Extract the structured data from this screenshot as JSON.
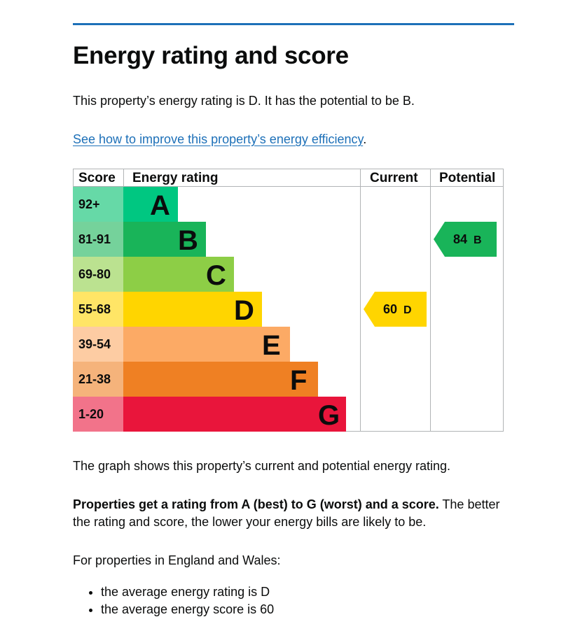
{
  "heading": "Energy rating and score",
  "intro": "This property’s energy rating is D. It has the potential to be B.",
  "improve_link": "See how to improve this property’s energy efficiency",
  "improve_suffix": ".",
  "chart_data": {
    "type": "table",
    "headers": {
      "score": "Score",
      "rating": "Energy rating",
      "current": "Current",
      "potential": "Potential"
    },
    "bands": [
      {
        "letter": "A",
        "range": "92+",
        "bar_color": "#00c781",
        "score_color": "#66d9a7"
      },
      {
        "letter": "B",
        "range": "81-91",
        "bar_color": "#19b459",
        "score_color": "#75d29b"
      },
      {
        "letter": "C",
        "range": "69-80",
        "bar_color": "#8dce46",
        "score_color": "#bbe290"
      },
      {
        "letter": "D",
        "range": "55-68",
        "bar_color": "#ffd500",
        "score_color": "#ffe566"
      },
      {
        "letter": "E",
        "range": "39-54",
        "bar_color": "#fcaa65",
        "score_color": "#fdcca3"
      },
      {
        "letter": "F",
        "range": "21-38",
        "bar_color": "#ef8023",
        "score_color": "#f5b37b"
      },
      {
        "letter": "G",
        "range": "1-20",
        "bar_color": "#e9153b",
        "score_color": "#f2738a"
      }
    ],
    "current": {
      "score": "60",
      "band": "D",
      "color": "#ffd500"
    },
    "potential": {
      "score": "84",
      "band": "B",
      "color": "#19b459"
    }
  },
  "graph_text": "The graph shows this property’s current and potential energy rating.",
  "rating_bold": "Properties get a rating from A (best) to G (worst) and a score.",
  "rating_rest": " The better the rating and score, the lower your energy bills are likely to be.",
  "average_intro": "For properties in England and Wales:",
  "average_items": [
    "the average energy rating is D",
    "the average energy score is 60"
  ]
}
